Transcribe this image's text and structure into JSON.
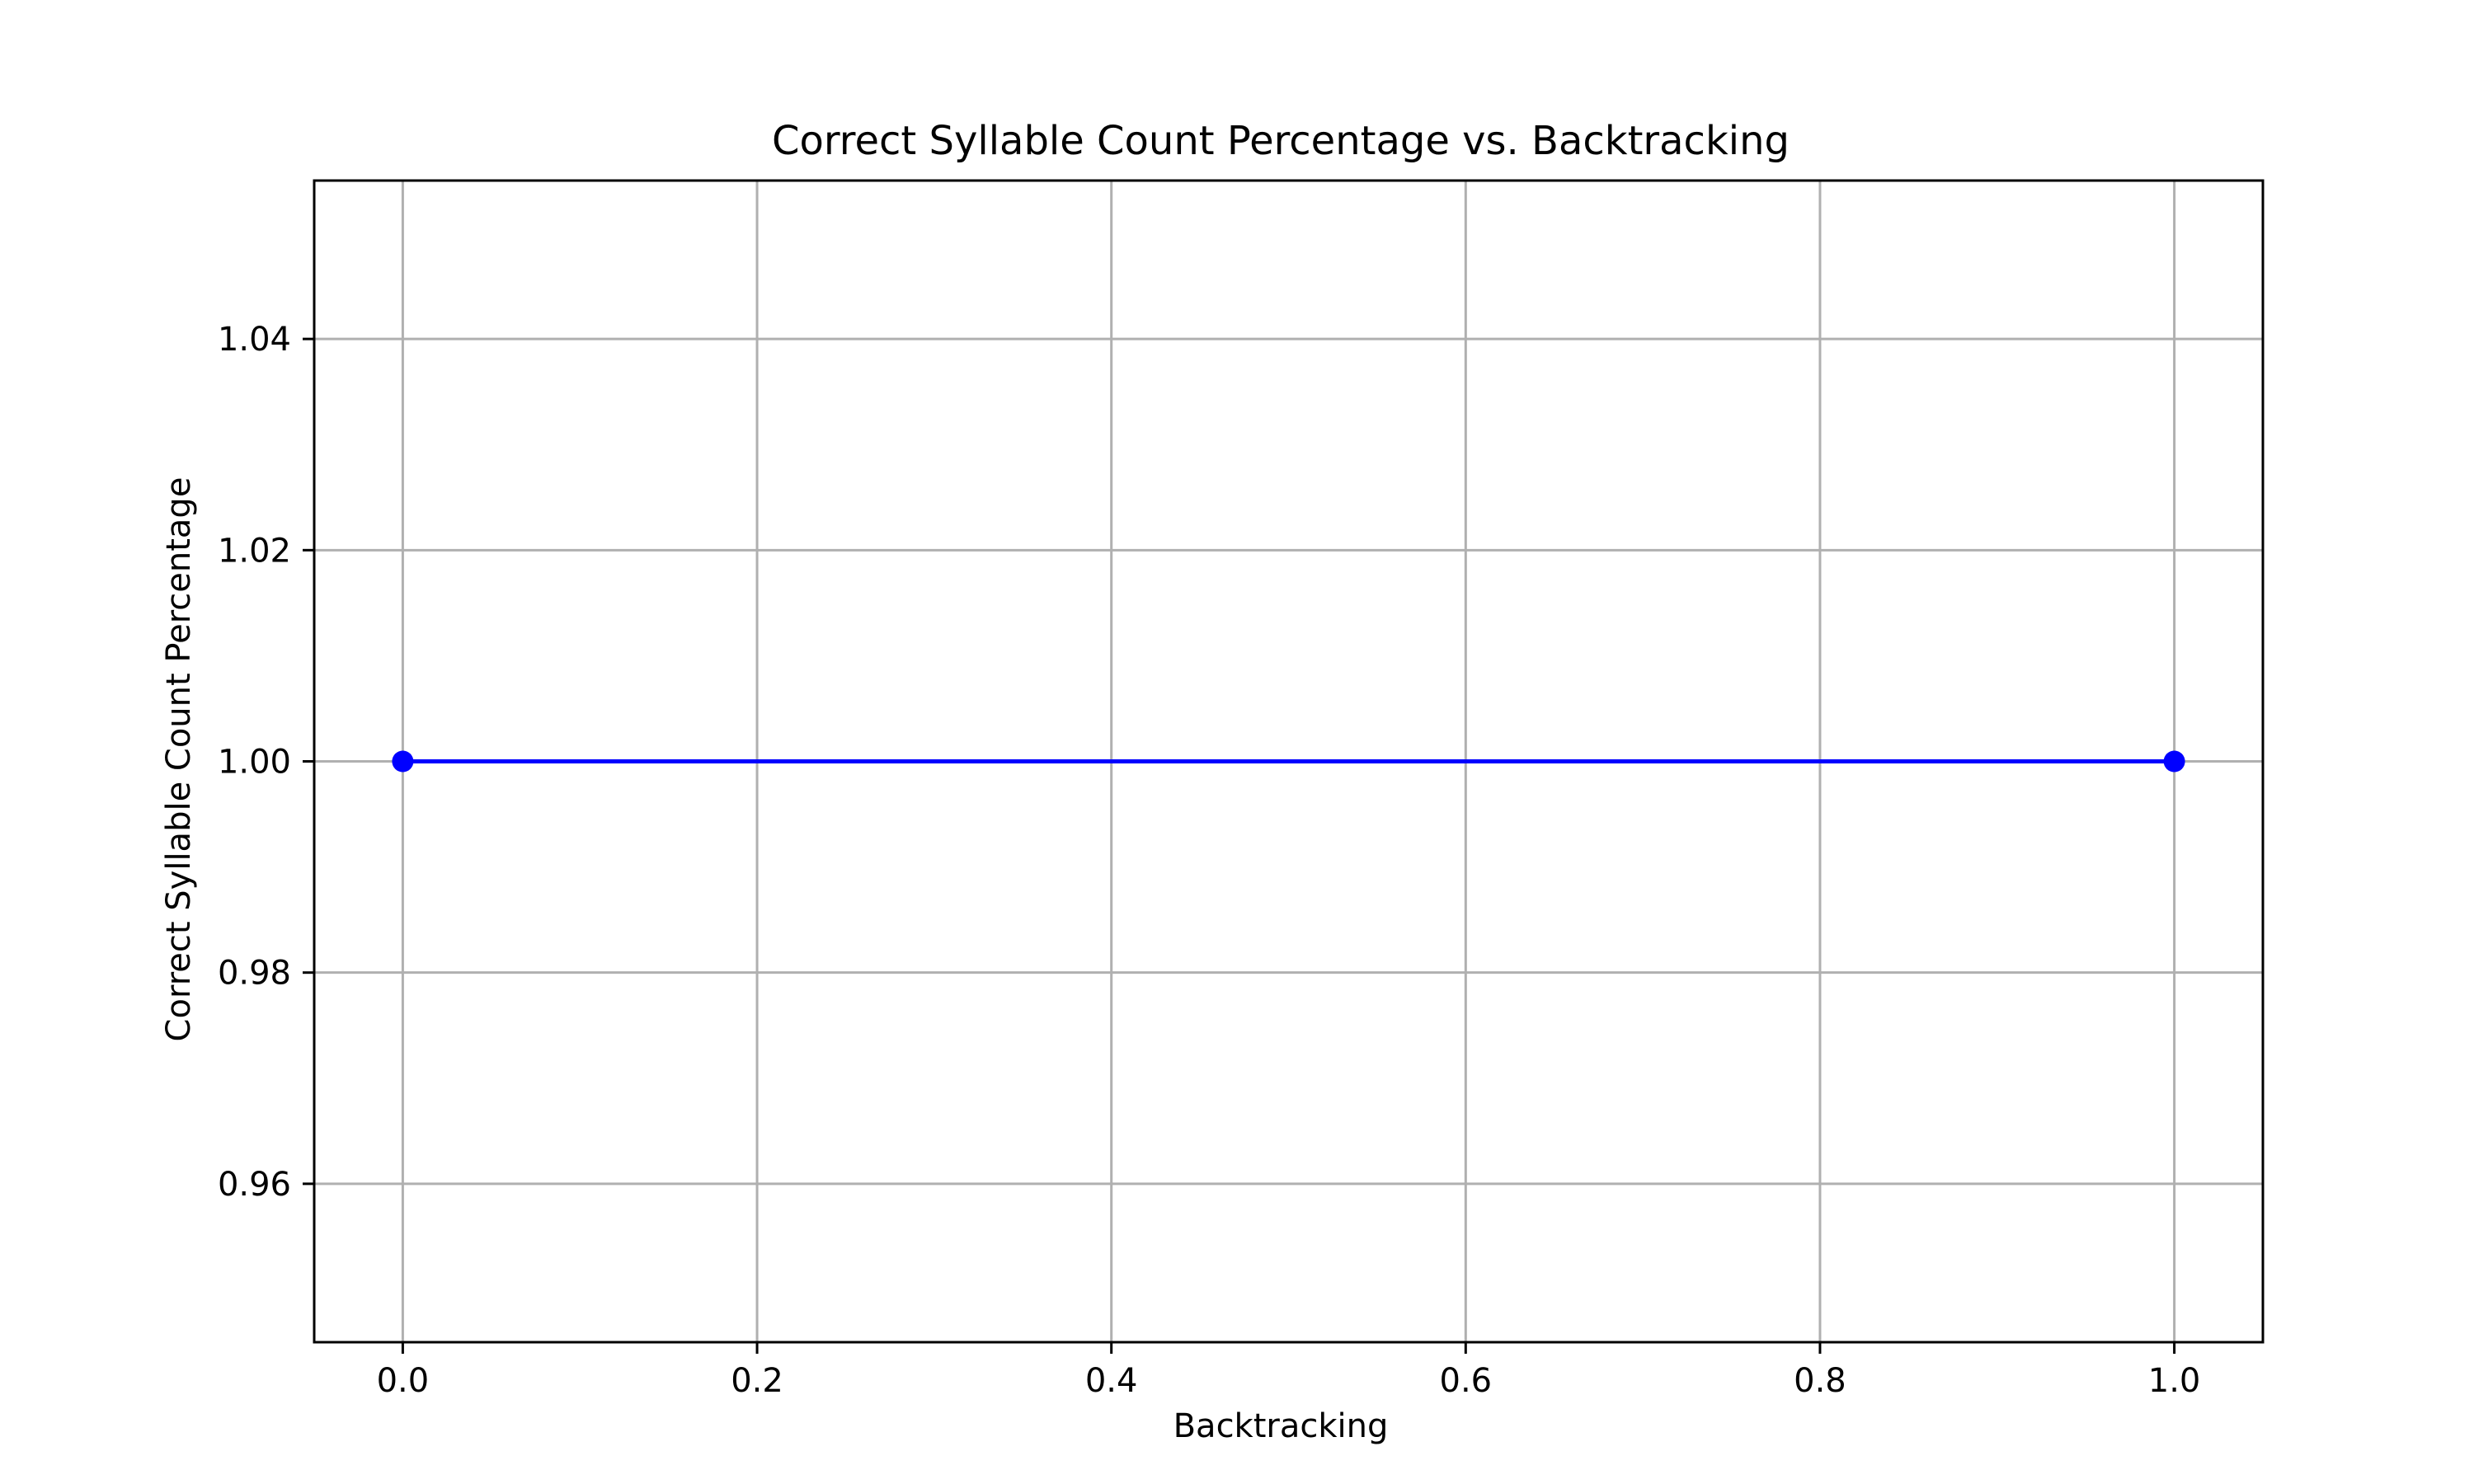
{
  "chart_data": {
    "type": "line",
    "title": "Correct Syllable Count Percentage vs. Backtracking",
    "xlabel": "Backtracking",
    "ylabel": "Correct Syllable Count Percentage",
    "xlim": [
      -0.05,
      1.05
    ],
    "ylim": [
      0.945,
      1.055
    ],
    "x_ticks": [
      0.0,
      0.2,
      0.4,
      0.6,
      0.8,
      1.0
    ],
    "x_tick_labels": [
      "0.0",
      "0.2",
      "0.4",
      "0.6",
      "0.8",
      "1.0"
    ],
    "y_ticks": [
      0.96,
      0.98,
      1.0,
      1.02,
      1.04
    ],
    "y_tick_labels": [
      "0.96",
      "0.98",
      "1.00",
      "1.02",
      "1.04"
    ],
    "grid": true,
    "series": [
      {
        "x": [
          0.0,
          1.0
        ],
        "y": [
          1.0,
          1.0
        ],
        "color": "#0000ff",
        "marker": "circle"
      }
    ],
    "colors": {
      "line": "#0000ff",
      "grid": "#b0b0b0",
      "axes": "#000000",
      "background": "#ffffff"
    }
  }
}
